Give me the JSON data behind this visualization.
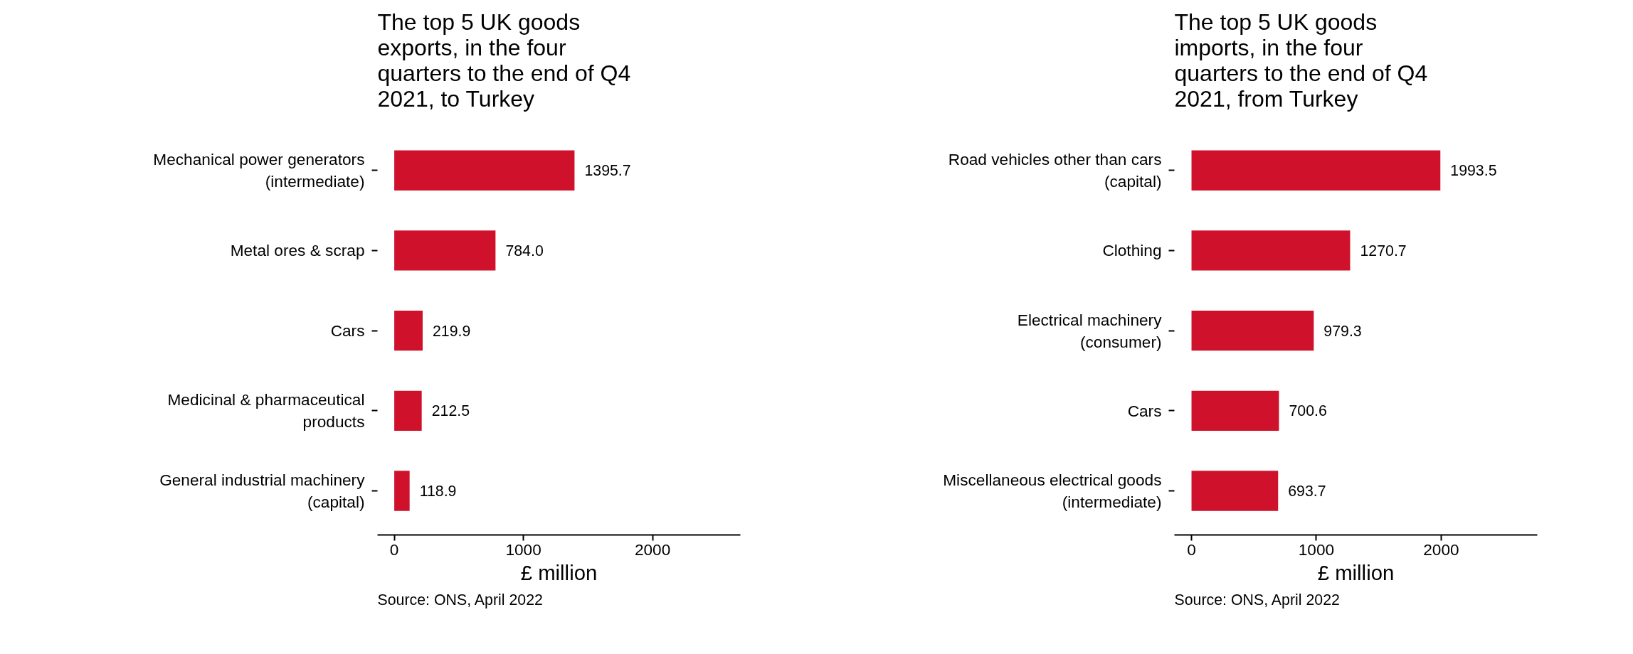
{
  "chart_data": [
    {
      "type": "bar",
      "orientation": "horizontal",
      "title": "The top 5 UK goods exports, in the four quarters to the end of Q4 2021, to Turkey",
      "categories": [
        "Mechanical power generators (intermediate)",
        "Metal ores & scrap",
        "Cars",
        "Medicinal & pharmaceutical products",
        "General industrial machinery (capital)"
      ],
      "values": [
        1395.7,
        784.0,
        219.9,
        212.5,
        118.9
      ],
      "value_labels": [
        "1395.7",
        "784.0",
        "219.9",
        "212.5",
        "118.9"
      ],
      "color": "#d0112b",
      "xlabel": "£ million",
      "xlim": [
        -130,
        2680
      ],
      "xticks": [
        0,
        1000,
        2000
      ],
      "grid": false,
      "annotations": [
        "Source: ONS, April 2022"
      ]
    },
    {
      "type": "bar",
      "orientation": "horizontal",
      "title": "The top 5 UK goods imports, in the four quarters to the end of Q4 2021, from Turkey",
      "categories": [
        "Road vehicles other than cars (capital)",
        "Clothing",
        "Electrical machinery (consumer)",
        "Cars",
        "Miscellaneous electrical goods (intermediate)"
      ],
      "values": [
        1993.5,
        1270.7,
        979.3,
        700.6,
        693.7
      ],
      "value_labels": [
        "1993.5",
        "1270.7",
        "979.3",
        "700.6",
        "693.7"
      ],
      "color": "#d0112b",
      "xlabel": "£ million",
      "xlim": [
        -137,
        2770
      ],
      "xticks": [
        0,
        1000,
        2000
      ],
      "grid": false,
      "annotations": [
        "Source: ONS, April 2022"
      ]
    }
  ]
}
